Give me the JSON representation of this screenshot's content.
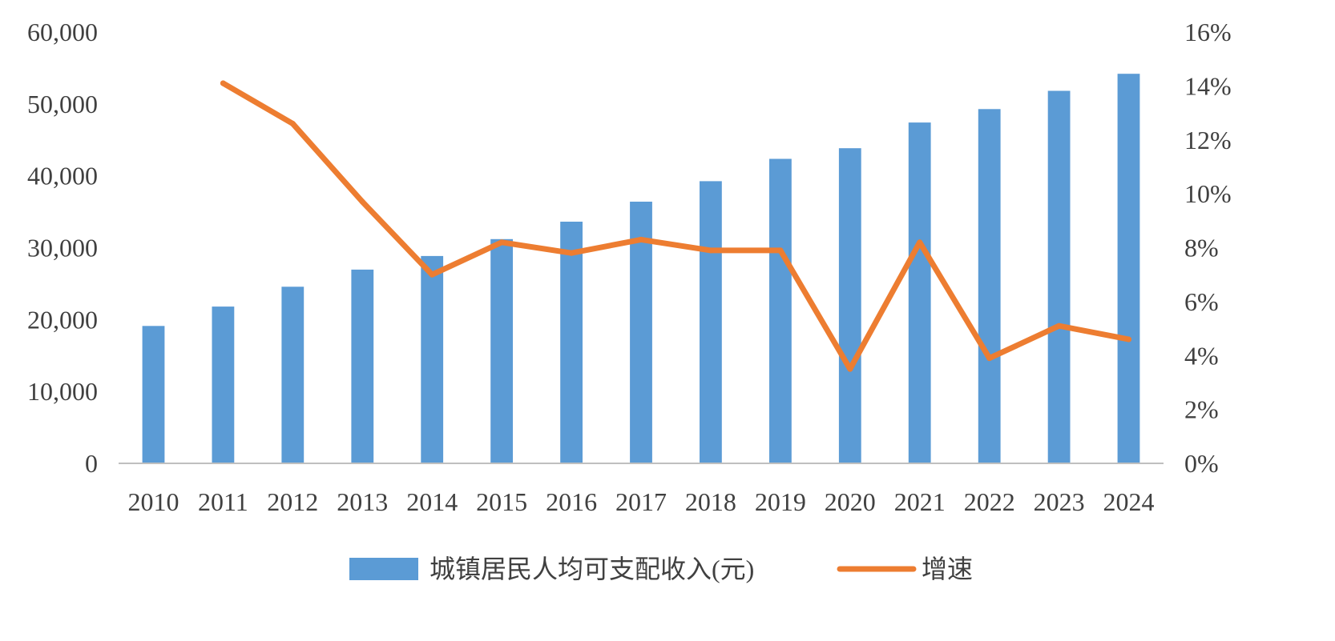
{
  "chart_data": {
    "type": "bar",
    "title": "",
    "xlabel": "",
    "ylabel": "",
    "categories": [
      "2010",
      "2011",
      "2012",
      "2013",
      "2014",
      "2015",
      "2016",
      "2017",
      "2018",
      "2019",
      "2020",
      "2021",
      "2022",
      "2023",
      "2024"
    ],
    "series": [
      {
        "name": "城镇居民人均可支配收入(元)",
        "type": "bar",
        "axis": "left",
        "color": "#5B9BD5",
        "values": [
          19109,
          21810,
          24565,
          26955,
          28844,
          31195,
          33616,
          36396,
          39251,
          42359,
          43834,
          47412,
          49283,
          51821,
          54188
        ]
      },
      {
        "name": "增速",
        "type": "line",
        "axis": "right",
        "color": "#ED7D31",
        "values": [
          null,
          14.1,
          12.6,
          9.7,
          7.0,
          8.2,
          7.8,
          8.3,
          7.9,
          7.9,
          3.5,
          8.2,
          3.9,
          5.1,
          4.6
        ]
      }
    ],
    "y_left": {
      "ylim": [
        0,
        60000
      ],
      "ticks": [
        0,
        10000,
        20000,
        30000,
        40000,
        50000,
        60000
      ],
      "tick_labels": [
        "0",
        "10,000",
        "20,000",
        "30,000",
        "40,000",
        "50,000",
        "60,000"
      ]
    },
    "y_right": {
      "ylim": [
        0,
        16
      ],
      "ticks": [
        0,
        2,
        4,
        6,
        8,
        10,
        12,
        14,
        16
      ],
      "tick_labels": [
        "0%",
        "2%",
        "4%",
        "6%",
        "8%",
        "10%",
        "12%",
        "14%",
        "16%"
      ]
    },
    "grid": false,
    "legend_position": "bottom-center",
    "legend": [
      {
        "label": "城镇居民人均可支配收入(元)",
        "marker": "bar"
      },
      {
        "label": "增速",
        "marker": "line"
      }
    ]
  }
}
